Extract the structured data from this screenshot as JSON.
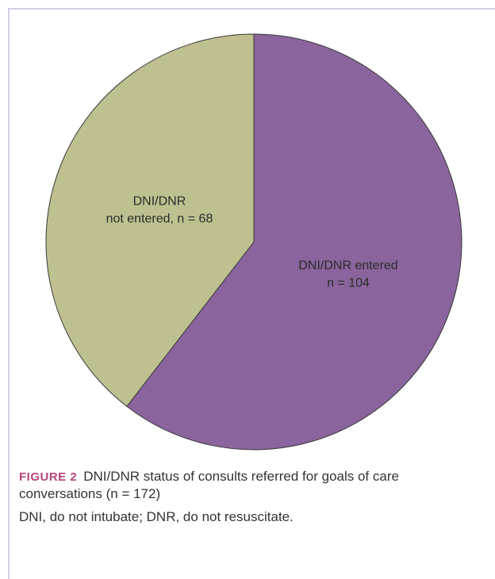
{
  "chart_data": {
    "type": "pie",
    "slices": [
      {
        "label_lines": [
          "DNI/DNR entered",
          "n = 104"
        ],
        "value": 104,
        "color": "#8a649c"
      },
      {
        "label_lines": [
          "DNI/DNR",
          "not entered, n = 68"
        ],
        "value": 68,
        "color": "#bfc090"
      }
    ],
    "total": 172,
    "start": "12 o'clock",
    "direction": "clockwise",
    "stroke_color": "#3a3a3a"
  },
  "caption": {
    "figure_label": "FIGURE 2",
    "text": "DNI/DNR status of consults referred for goals of care conversations (n = 172)",
    "note": "DNI, do not intubate; DNR, do not resuscitate."
  }
}
